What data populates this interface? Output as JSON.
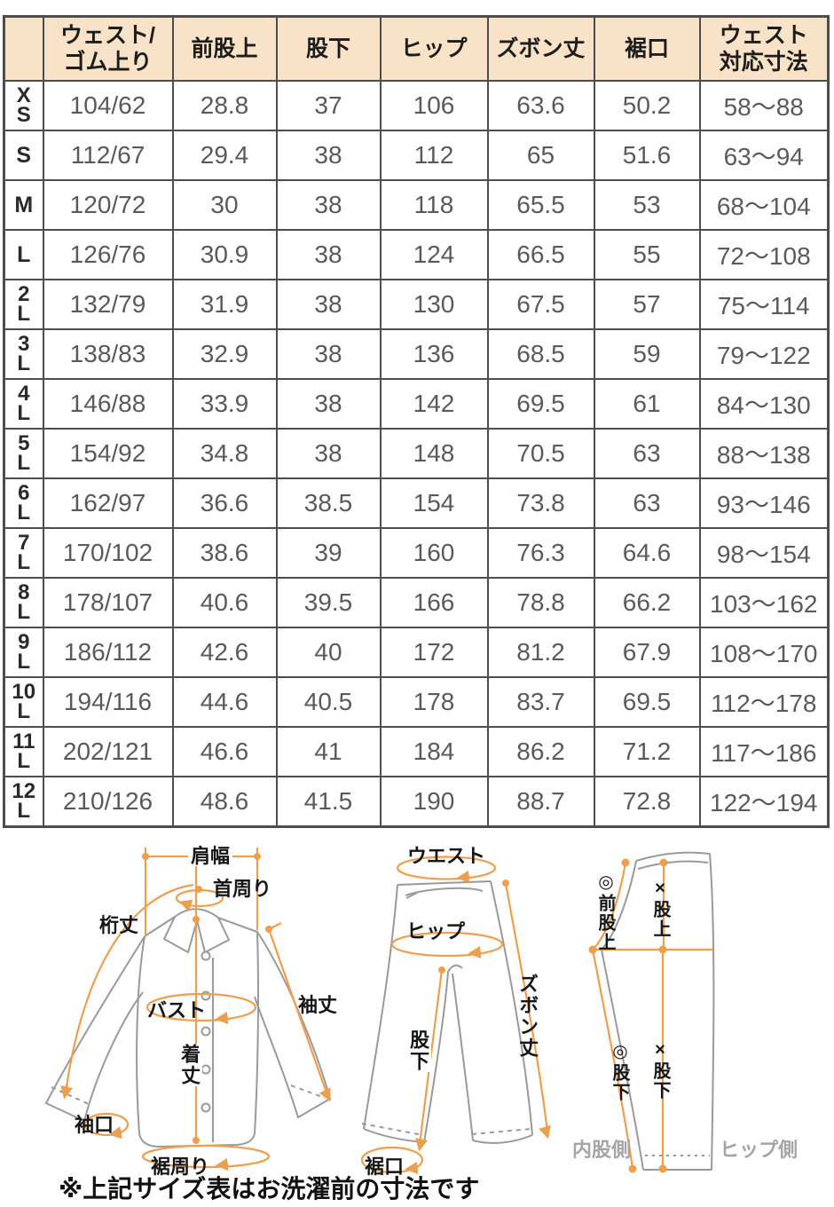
{
  "table": {
    "headers": [
      "",
      "ウェスト/\nゴム上り",
      "前股上",
      "股下",
      "ヒップ",
      "ズボン丈",
      "裾口",
      "ウェスト\n対応寸法"
    ],
    "rows": [
      {
        "size": "XS",
        "values": [
          "104/62",
          "28.8",
          "37",
          "106",
          "63.6",
          "50.2",
          "58〜88"
        ]
      },
      {
        "size": "S",
        "values": [
          "112/67",
          "29.4",
          "38",
          "112",
          "65",
          "51.6",
          "63〜94"
        ]
      },
      {
        "size": "M",
        "values": [
          "120/72",
          "30",
          "38",
          "118",
          "65.5",
          "53",
          "68〜104"
        ]
      },
      {
        "size": "L",
        "values": [
          "126/76",
          "30.9",
          "38",
          "124",
          "66.5",
          "55",
          "72〜108"
        ]
      },
      {
        "size": "2L",
        "values": [
          "132/79",
          "31.9",
          "38",
          "130",
          "67.5",
          "57",
          "75〜114"
        ]
      },
      {
        "size": "3L",
        "values": [
          "138/83",
          "32.9",
          "38",
          "136",
          "68.5",
          "59",
          "79〜122"
        ]
      },
      {
        "size": "4L",
        "values": [
          "146/88",
          "33.9",
          "38",
          "142",
          "69.5",
          "61",
          "84〜130"
        ]
      },
      {
        "size": "5L",
        "values": [
          "154/92",
          "34.8",
          "38",
          "148",
          "70.5",
          "63",
          "88〜138"
        ]
      },
      {
        "size": "6L",
        "values": [
          "162/97",
          "36.6",
          "38.5",
          "154",
          "73.8",
          "63",
          "93〜146"
        ]
      },
      {
        "size": "7L",
        "values": [
          "170/102",
          "38.6",
          "39",
          "160",
          "76.3",
          "64.6",
          "98〜154"
        ]
      },
      {
        "size": "8L",
        "values": [
          "178/107",
          "40.6",
          "39.5",
          "166",
          "78.8",
          "66.2",
          "103〜162"
        ]
      },
      {
        "size": "9L",
        "values": [
          "186/112",
          "42.6",
          "40",
          "172",
          "81.2",
          "67.9",
          "108〜170"
        ]
      },
      {
        "size": "10L",
        "values": [
          "194/116",
          "44.6",
          "40.5",
          "178",
          "83.7",
          "69.5",
          "112〜178"
        ]
      },
      {
        "size": "11L",
        "values": [
          "202/121",
          "46.6",
          "41",
          "184",
          "86.2",
          "71.2",
          "117〜186"
        ]
      },
      {
        "size": "12L",
        "values": [
          "210/126",
          "48.6",
          "41.5",
          "190",
          "88.7",
          "72.8",
          "122〜194"
        ]
      }
    ]
  },
  "diagrams": {
    "shirt": {
      "labels": {
        "shoulder_width": "肩幅",
        "neck_girth": "首周り",
        "yuki_length": "桁丈",
        "bust": "バスト",
        "body_length": "着丈",
        "sleeve_length": "袖丈",
        "cuff_opening": "袖口",
        "hem_girth": "裾周り"
      }
    },
    "pants_front": {
      "labels": {
        "waist": "ウエスト",
        "hip": "ヒップ",
        "pants_length": "ズボン丈",
        "inseam": "股下",
        "hem_opening": "裾口"
      }
    },
    "pants_side": {
      "labels": {
        "front_rise": "◎前股上",
        "rise": "×股上",
        "inseam_inner": "◎股下",
        "inseam_hip": "×股下",
        "inner_side": "内股側",
        "hip_side": "ヒップ側"
      }
    }
  },
  "footnote": "※上記サイズ表はお洗濯前の寸法です",
  "colors": {
    "header_bg": "#f8e3c8",
    "table_border": "#4d4d4d",
    "data_text": "#5a5a5a",
    "accent_orange": "#ed9f4d",
    "garment_gray": "#9a9a9a",
    "side_label_gray": "#a5a5a5"
  }
}
